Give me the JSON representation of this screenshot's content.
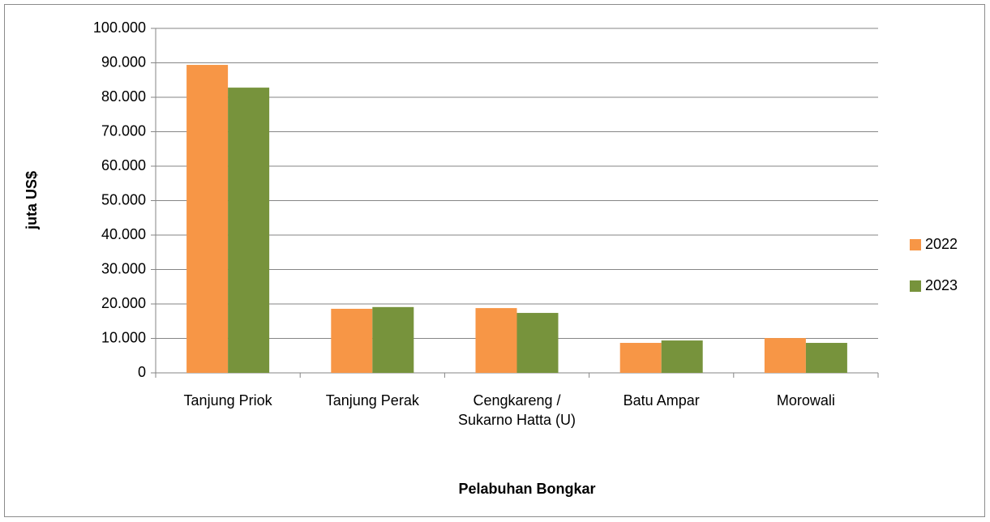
{
  "chart_data": {
    "type": "bar",
    "x_label": "Pelabuhan Bongkar",
    "y_label": "juta US$",
    "categories": [
      "Tanjung Priok",
      "Tanjung Perak",
      "Cengkareng / Sukarno Hatta (U)",
      "Batu Ampar",
      "Morowali"
    ],
    "series": [
      {
        "name": "2022",
        "color": "#f79646",
        "values": [
          89400,
          18600,
          18800,
          8700,
          10100
        ]
      },
      {
        "name": "2023",
        "color": "#77933c",
        "values": [
          82800,
          19100,
          17400,
          9400,
          8700
        ]
      }
    ],
    "ylim": [
      0,
      100000
    ],
    "yticks": [
      0,
      {
        "value": 10000,
        "label": "10.000"
      },
      {
        "value": 20000,
        "label": "20.000"
      },
      {
        "value": 30000,
        "label": "30.000"
      },
      {
        "value": 40000,
        "label": "40.000"
      },
      {
        "value": 50000,
        "label": "50.000"
      },
      {
        "value": 60000,
        "label": "60.000"
      },
      {
        "value": 70000,
        "label": "70.000"
      },
      {
        "value": 80000,
        "label": "80.000"
      },
      {
        "value": 90000,
        "label": "90.000"
      },
      {
        "value": 100000,
        "label": "100.000"
      }
    ],
    "grid": true,
    "legend": "right"
  }
}
